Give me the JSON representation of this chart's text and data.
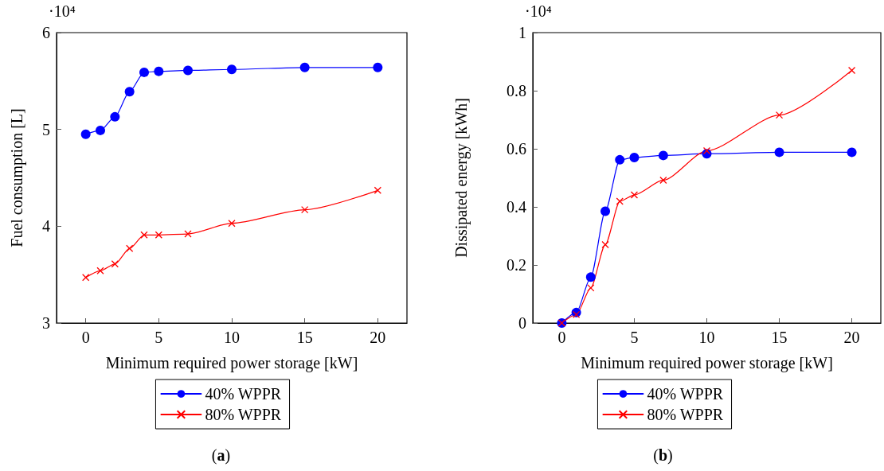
{
  "chart_data": [
    {
      "type": "line",
      "xlabel": "Minimum required power storage [kW]",
      "ylabel": "Fuel consumption [L]",
      "annotations": [
        "·10⁴",
        "(a)"
      ],
      "x": [
        0,
        1,
        2,
        3,
        4,
        5,
        7,
        10,
        15,
        20
      ],
      "series": [
        {
          "name": "40% WPPR",
          "color": "#0000ff",
          "marker": "circle",
          "values": [
            4.95,
            4.99,
            5.13,
            5.39,
            5.59,
            5.6,
            5.61,
            5.62,
            5.64,
            5.64
          ]
        },
        {
          "name": "80% WPPR",
          "color": "#ff0000",
          "marker": "cross",
          "values": [
            3.47,
            3.54,
            3.61,
            3.77,
            3.91,
            3.91,
            3.92,
            4.03,
            4.17,
            4.37
          ]
        }
      ],
      "xlim": [
        -2,
        22
      ],
      "xticks": [
        0,
        5,
        10,
        15,
        20
      ],
      "ylim": [
        3,
        6
      ],
      "yticks": [
        3,
        4,
        5,
        6
      ],
      "grid": false,
      "legend": "bottom",
      "line_style": "solid"
    },
    {
      "type": "line",
      "xlabel": "Minimum required power storage [kW]",
      "ylabel": "Dissipated energy [kWh]",
      "annotations": [
        "·10⁴",
        "(b)"
      ],
      "x": [
        0,
        1,
        2,
        3,
        4,
        5,
        7,
        10,
        15,
        20
      ],
      "series": [
        {
          "name": "40% WPPR",
          "color": "#0000ff",
          "marker": "circle",
          "values": [
            0,
            0.036,
            0.158,
            0.385,
            0.562,
            0.57,
            0.577,
            0.583,
            0.588,
            0.588
          ]
        },
        {
          "name": "80% WPPR",
          "color": "#ff0000",
          "marker": "cross",
          "values": [
            0,
            0.029,
            0.121,
            0.27,
            0.419,
            0.441,
            0.492,
            0.593,
            0.716,
            0.87
          ]
        }
      ],
      "xlim": [
        -2,
        22
      ],
      "xticks": [
        0,
        5,
        10,
        15,
        20
      ],
      "ylim": [
        0,
        1
      ],
      "yticks": [
        0,
        0.2,
        0.4,
        0.6,
        0.8,
        1
      ],
      "grid": false,
      "legend": "bottom",
      "line_style": "solid"
    }
  ]
}
